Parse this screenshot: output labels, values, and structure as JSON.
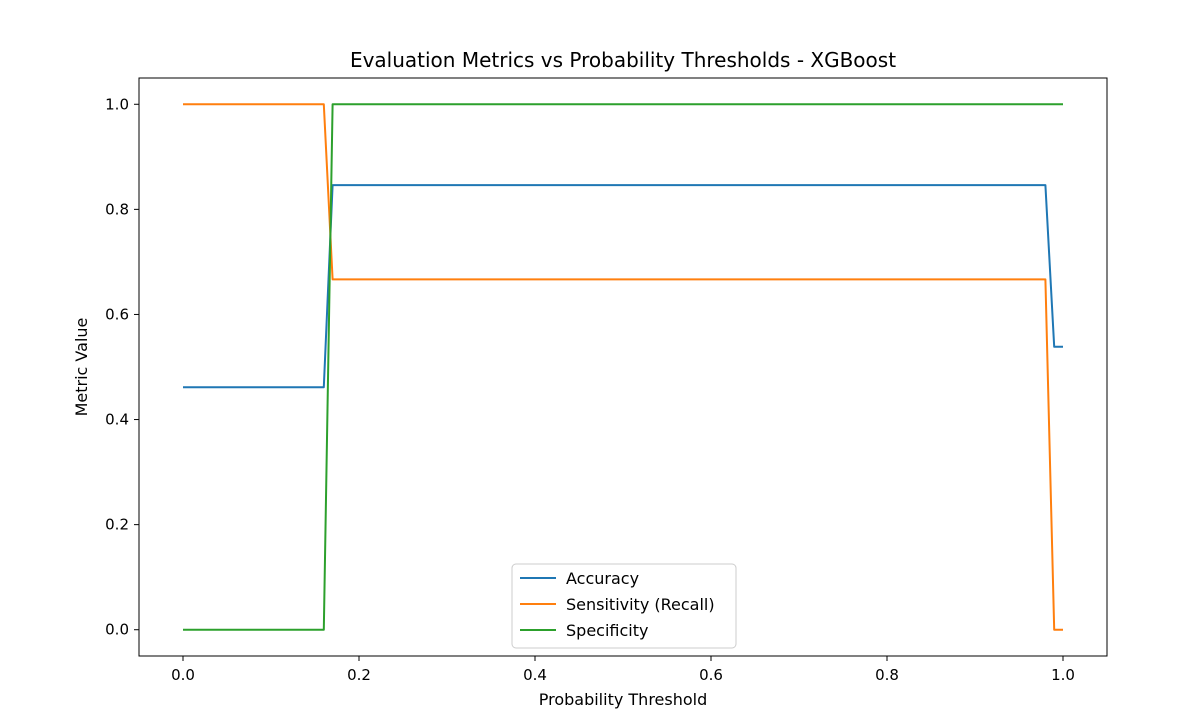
{
  "chart_data": {
    "type": "line",
    "title": "Evaluation Metrics vs Probability Thresholds - XGBoost",
    "xlabel": "Probability Threshold",
    "ylabel": "Metric Value",
    "xlim": [
      -0.05,
      1.05
    ],
    "ylim": [
      -0.05,
      1.05
    ],
    "xticks": [
      0.0,
      0.2,
      0.4,
      0.6,
      0.8,
      1.0
    ],
    "xtick_labels": [
      "0.0",
      "0.2",
      "0.4",
      "0.6",
      "0.8",
      "1.0"
    ],
    "yticks": [
      0.0,
      0.2,
      0.4,
      0.6,
      0.8,
      1.0
    ],
    "ytick_labels": [
      "0.0",
      "0.2",
      "0.4",
      "0.6",
      "0.8",
      "1.0"
    ],
    "grid": false,
    "legend_position": "lower center",
    "series": [
      {
        "name": "Accuracy",
        "color": "#1f77b4",
        "x": [
          0.0,
          0.16,
          0.17,
          0.98,
          0.99,
          1.0
        ],
        "y": [
          0.4615,
          0.4615,
          0.8462,
          0.8462,
          0.5385,
          0.5385
        ]
      },
      {
        "name": "Sensitivity (Recall)",
        "color": "#ff7f0e",
        "x": [
          0.0,
          0.16,
          0.17,
          0.98,
          0.99,
          1.0
        ],
        "y": [
          1.0,
          1.0,
          0.6667,
          0.6667,
          0.0,
          0.0
        ]
      },
      {
        "name": "Specificity",
        "color": "#2ca02c",
        "x": [
          0.0,
          0.16,
          0.17,
          1.0
        ],
        "y": [
          0.0,
          0.0,
          1.0,
          1.0
        ]
      }
    ]
  }
}
